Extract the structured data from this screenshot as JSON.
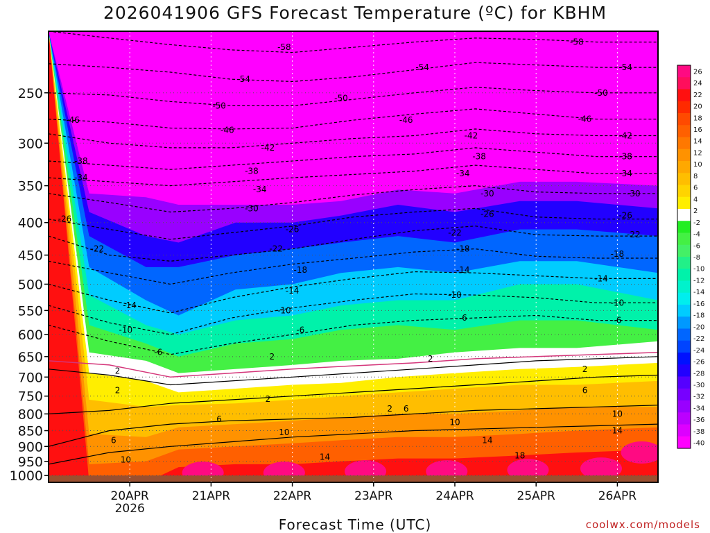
{
  "title": "2026041906 GFS Forecast Temperature (ºC) for KBHM",
  "credit": "coolwx.com/models",
  "chart_data": {
    "type": "heatmap",
    "title": "2026041906 GFS Forecast Temperature (ºC) for KBHM",
    "xlabel": "Forecast Time (UTC)",
    "ylabel": "",
    "x_ticks": [
      {
        "label": "20APR",
        "sub": "2026",
        "day": 1
      },
      {
        "label": "21APR",
        "sub": "",
        "day": 2
      },
      {
        "label": "22APR",
        "sub": "",
        "day": 3
      },
      {
        "label": "23APR",
        "sub": "",
        "day": 4
      },
      {
        "label": "24APR",
        "sub": "",
        "day": 5
      },
      {
        "label": "25APR",
        "sub": "",
        "day": 6
      },
      {
        "label": "26APR",
        "sub": "",
        "day": 7
      }
    ],
    "xlim_days": [
      0,
      7.5
    ],
    "y_ticks": [
      250,
      300,
      350,
      400,
      450,
      500,
      550,
      600,
      650,
      700,
      750,
      800,
      850,
      900,
      950,
      1000
    ],
    "ylim_hPa": [
      200,
      1025
    ],
    "y_scale": "log",
    "grid": true,
    "colorbar": {
      "labels": [
        "26",
        "24",
        "22",
        "20",
        "18",
        "16",
        "14",
        "12",
        "10",
        "8",
        "6",
        "4",
        "2",
        "-2",
        "-4",
        "-6",
        "-8",
        "-10",
        "-12",
        "-14",
        "-16",
        "-18",
        "-20",
        "-22",
        "-24",
        "-26",
        "-28",
        "-30",
        "-32",
        "-34",
        "-36",
        "-38",
        "-40"
      ],
      "colors": [
        "#ff0a82",
        "#ff0e5c",
        "#ff1010",
        "#ff2a00",
        "#ff4a00",
        "#ff6000",
        "#ff7800",
        "#ff9200",
        "#ffa800",
        "#ffbe00",
        "#ffd400",
        "#ffee00",
        "#ffffff",
        "#22ee22",
        "#44f044",
        "#44f066",
        "#22f088",
        "#00f2aa",
        "#00f2cc",
        "#00eeee",
        "#00ccff",
        "#0099ff",
        "#0066ff",
        "#0044ff",
        "#0011ff",
        "#2200ff",
        "#5500ff",
        "#7700ff",
        "#9900ff",
        "#bb00ff",
        "#dd00ff",
        "#ff00ff"
      ]
    },
    "layers": [
      {
        "color": "#ff00ff",
        "profile_hPa": [
          200,
          335,
          335,
          345,
          345,
          360,
          360,
          345,
          345,
          330,
          330,
          335
        ]
      },
      {
        "color": "#9900ff",
        "profile_hPa": [
          200,
          360,
          365,
          375,
          375,
          375,
          370,
          355,
          360,
          345,
          345,
          350
        ]
      },
      {
        "color": "#2200ff",
        "profile_hPa": [
          200,
          385,
          420,
          430,
          400,
          400,
          390,
          375,
          385,
          370,
          370,
          380
        ]
      },
      {
        "color": "#0066ff",
        "profile_hPa": [
          200,
          420,
          470,
          470,
          450,
          440,
          430,
          420,
          430,
          410,
          410,
          420
        ]
      },
      {
        "color": "#00ccff",
        "profile_hPa": [
          200,
          470,
          530,
          560,
          510,
          500,
          480,
          470,
          480,
          460,
          460,
          480
        ]
      },
      {
        "color": "#00f2aa",
        "profile_hPa": [
          200,
          520,
          580,
          600,
          570,
          560,
          540,
          530,
          530,
          500,
          500,
          530
        ]
      },
      {
        "color": "#44f044",
        "profile_hPa": [
          200,
          580,
          620,
          650,
          620,
          610,
          590,
          580,
          590,
          570,
          570,
          590
        ]
      },
      {
        "color": "#ffffff",
        "profile_hPa": [
          200,
          640,
          660,
          690,
          680,
          670,
          660,
          655,
          640,
          630,
          630,
          615
        ]
      },
      {
        "color": "#ffee00",
        "profile_hPa": [
          200,
          690,
          710,
          740,
          730,
          720,
          715,
          700,
          690,
          680,
          675,
          665
        ]
      },
      {
        "color": "#ffbe00",
        "profile_hPa": [
          200,
          760,
          780,
          775,
          770,
          760,
          750,
          740,
          730,
          720,
          720,
          710
        ]
      },
      {
        "color": "#ff9200",
        "profile_hPa": [
          200,
          860,
          870,
          840,
          830,
          820,
          810,
          800,
          800,
          790,
          780,
          780
        ]
      },
      {
        "color": "#ff6000",
        "profile_hPa": [
          200,
          960,
          950,
          910,
          900,
          890,
          880,
          870,
          870,
          860,
          850,
          840
        ]
      },
      {
        "color": "#ff1010",
        "profile_hPa": [
          200,
          1025,
          1025,
          970,
          960,
          960,
          950,
          940,
          940,
          930,
          920,
          910
        ]
      }
    ],
    "layer_x_days": [
      0,
      0.5,
      1.2,
      1.6,
      2.3,
      3,
      3.6,
      4.3,
      5,
      5.8,
      6.5,
      7.5
    ],
    "hot_spots": [
      {
        "day": 1.9,
        "hPa": 990,
        "color": "#ff0a82"
      },
      {
        "day": 2.9,
        "hPa": 990,
        "color": "#ff0a82"
      },
      {
        "day": 3.9,
        "hPa": 985,
        "color": "#ff0a82"
      },
      {
        "day": 4.9,
        "hPa": 985,
        "color": "#ff0a82"
      },
      {
        "day": 5.9,
        "hPa": 980,
        "color": "#ff0a82"
      },
      {
        "day": 6.8,
        "hPa": 975,
        "color": "#ff0a82"
      },
      {
        "day": 7.3,
        "hPa": 920,
        "color": "#ff0a82"
      }
    ],
    "ground_hPa": 1000,
    "ground_color": "#9a5030",
    "contours": [
      {
        "value": -58,
        "dashed": true,
        "profile_hPa": [
          200,
          205,
          210,
          214,
          216,
          212,
          208,
          205,
          206,
          208,
          208
        ]
      },
      {
        "value": -54,
        "dashed": true,
        "profile_hPa": [
          225,
          228,
          232,
          238,
          240,
          236,
          230,
          224,
          226,
          228,
          228
        ]
      },
      {
        "value": -50,
        "dashed": true,
        "profile_hPa": [
          250,
          252,
          258,
          262,
          262,
          256,
          250,
          245,
          248,
          250,
          250
        ]
      },
      {
        "value": -46,
        "dashed": true,
        "profile_hPa": [
          275,
          278,
          284,
          285,
          284,
          276,
          270,
          265,
          270,
          275,
          275
        ]
      },
      {
        "value": -42,
        "dashed": true,
        "profile_hPa": [
          290,
          300,
          305,
          305,
          300,
          295,
          292,
          285,
          290,
          292,
          292
        ]
      },
      {
        "value": -38,
        "dashed": true,
        "profile_hPa": [
          320,
          325,
          330,
          325,
          320,
          315,
          312,
          305,
          310,
          315,
          315
        ]
      },
      {
        "value": -34,
        "dashed": true,
        "profile_hPa": [
          340,
          345,
          350,
          345,
          340,
          336,
          332,
          325,
          330,
          335,
          335
        ]
      },
      {
        "value": -30,
        "dashed": true,
        "profile_hPa": [
          360,
          372,
          385,
          380,
          372,
          362,
          355,
          350,
          358,
          360,
          360
        ]
      },
      {
        "value": -26,
        "dashed": true,
        "profile_hPa": [
          395,
          410,
          425,
          415,
          405,
          392,
          385,
          380,
          392,
          395,
          395
        ]
      },
      {
        "value": -22,
        "dashed": true,
        "profile_hPa": [
          420,
          450,
          460,
          450,
          440,
          425,
          412,
          405,
          418,
          420,
          420
        ]
      },
      {
        "value": -18,
        "dashed": true,
        "profile_hPa": [
          460,
          480,
          500,
          480,
          465,
          455,
          445,
          440,
          452,
          455,
          455
        ]
      },
      {
        "value": -14,
        "dashed": true,
        "profile_hPa": [
          500,
          530,
          555,
          525,
          505,
          490,
          478,
          480,
          485,
          490,
          490
        ]
      },
      {
        "value": -10,
        "dashed": true,
        "profile_hPa": [
          540,
          575,
          600,
          565,
          545,
          530,
          518,
          520,
          525,
          535,
          535
        ]
      },
      {
        "value": -6,
        "dashed": true,
        "profile_hPa": [
          580,
          615,
          645,
          620,
          600,
          580,
          570,
          565,
          560,
          570,
          570
        ]
      },
      {
        "value": 2,
        "dashed": false,
        "profile_hPa": [
          680,
          695,
          720,
          710,
          700,
          690,
          680,
          670,
          660,
          655,
          650
        ]
      },
      {
        "value": 6,
        "dashed": false,
        "profile_hPa": [
          800,
          790,
          770,
          760,
          750,
          740,
          730,
          720,
          710,
          700,
          695
        ]
      },
      {
        "value": 10,
        "dashed": false,
        "profile_hPa": [
          900,
          850,
          830,
          820,
          815,
          810,
          800,
          790,
          785,
          780,
          775
        ]
      },
      {
        "value": 14,
        "dashed": false,
        "profile_hPa": [
          960,
          920,
          900,
          885,
          870,
          860,
          850,
          845,
          840,
          835,
          830
        ]
      }
    ],
    "contour_x_days": [
      0,
      0.75,
      1.5,
      2.25,
      3,
      3.75,
      4.5,
      5.25,
      6,
      6.75,
      7.5
    ],
    "freezing_line": {
      "value": 0,
      "color": "#d4367a",
      "profile_hPa": [
        660,
        670,
        700,
        690,
        680,
        672,
        665,
        655,
        650,
        645,
        640
      ]
    },
    "contour_labels": [
      {
        "text": "-58",
        "day": 2.9,
        "hPa": 212,
        "color": "#000"
      },
      {
        "text": "-58",
        "day": 6.5,
        "hPa": 208,
        "color": "#000"
      },
      {
        "text": "-54",
        "day": 2.4,
        "hPa": 238,
        "color": "#000"
      },
      {
        "text": "-54",
        "day": 4.6,
        "hPa": 228,
        "color": "#000"
      },
      {
        "text": "-54",
        "day": 7.1,
        "hPa": 228,
        "color": "#000"
      },
      {
        "text": "-50",
        "day": 2.1,
        "hPa": 262,
        "color": "#000"
      },
      {
        "text": "-50",
        "day": 3.6,
        "hPa": 255,
        "color": "#000"
      },
      {
        "text": "-50",
        "day": 6.8,
        "hPa": 250,
        "color": "#000"
      },
      {
        "text": "-46",
        "day": 0.3,
        "hPa": 276,
        "color": "#000"
      },
      {
        "text": "-46",
        "day": 2.2,
        "hPa": 286,
        "color": "#000"
      },
      {
        "text": "-46",
        "day": 4.4,
        "hPa": 276,
        "color": "#000"
      },
      {
        "text": "-46",
        "day": 6.6,
        "hPa": 275,
        "color": "#000"
      },
      {
        "text": "-42",
        "day": 2.7,
        "hPa": 305,
        "color": "#000"
      },
      {
        "text": "-42",
        "day": 5.2,
        "hPa": 292,
        "color": "#000"
      },
      {
        "text": "-42",
        "day": 7.1,
        "hPa": 292,
        "color": "#000"
      },
      {
        "text": "-38",
        "day": 0.4,
        "hPa": 320,
        "color": "#000"
      },
      {
        "text": "-38",
        "day": 2.5,
        "hPa": 332,
        "color": "#000"
      },
      {
        "text": "-38",
        "day": 5.3,
        "hPa": 315,
        "color": "#000"
      },
      {
        "text": "-38",
        "day": 7.1,
        "hPa": 315,
        "color": "#000"
      },
      {
        "text": "-34",
        "day": 0.4,
        "hPa": 340,
        "color": "#000"
      },
      {
        "text": "-34",
        "day": 2.6,
        "hPa": 355,
        "color": "#000"
      },
      {
        "text": "-34",
        "day": 5.1,
        "hPa": 335,
        "color": "#000"
      },
      {
        "text": "-34",
        "day": 7.1,
        "hPa": 335,
        "color": "#000"
      },
      {
        "text": "-30",
        "day": 2.5,
        "hPa": 380,
        "color": "#000"
      },
      {
        "text": "-30",
        "day": 5.4,
        "hPa": 360,
        "color": "#000"
      },
      {
        "text": "-30",
        "day": 7.2,
        "hPa": 360,
        "color": "#000"
      },
      {
        "text": "-26",
        "day": 0.2,
        "hPa": 395,
        "color": "#000"
      },
      {
        "text": "-26",
        "day": 3.0,
        "hPa": 410,
        "color": "#000"
      },
      {
        "text": "-26",
        "day": 5.4,
        "hPa": 388,
        "color": "#000"
      },
      {
        "text": "-26",
        "day": 7.1,
        "hPa": 390,
        "color": "#000"
      },
      {
        "text": "-22",
        "day": 0.6,
        "hPa": 440,
        "color": "#000"
      },
      {
        "text": "-22",
        "day": 2.8,
        "hPa": 440,
        "color": "#000"
      },
      {
        "text": "-22",
        "day": 5.0,
        "hPa": 415,
        "color": "#000"
      },
      {
        "text": "-22",
        "day": 7.2,
        "hPa": 418,
        "color": "#000"
      },
      {
        "text": "-18",
        "day": 3.1,
        "hPa": 475,
        "color": "#000"
      },
      {
        "text": "-18",
        "day": 5.1,
        "hPa": 440,
        "color": "#000"
      },
      {
        "text": "-18",
        "day": 7.0,
        "hPa": 448,
        "color": "#000"
      },
      {
        "text": "-14",
        "day": 1.0,
        "hPa": 540,
        "color": "#000"
      },
      {
        "text": "-14",
        "day": 3.0,
        "hPa": 512,
        "color": "#000"
      },
      {
        "text": "-14",
        "day": 5.1,
        "hPa": 475,
        "color": "#000"
      },
      {
        "text": "-14",
        "day": 6.8,
        "hPa": 490,
        "color": "#000"
      },
      {
        "text": "-10",
        "day": 0.95,
        "hPa": 590,
        "color": "#000"
      },
      {
        "text": "-10",
        "day": 2.9,
        "hPa": 550,
        "color": "#000"
      },
      {
        "text": "-10",
        "day": 5.0,
        "hPa": 520,
        "color": "#000"
      },
      {
        "text": "-10",
        "day": 7.0,
        "hPa": 535,
        "color": "#000"
      },
      {
        "text": "-6",
        "day": 1.35,
        "hPa": 640,
        "color": "#000"
      },
      {
        "text": "-6",
        "day": 3.1,
        "hPa": 590,
        "color": "#000"
      },
      {
        "text": "-6",
        "day": 5.1,
        "hPa": 565,
        "color": "#000"
      },
      {
        "text": "-6",
        "day": 7.0,
        "hPa": 570,
        "color": "#000"
      },
      {
        "text": "2",
        "day": 0.85,
        "hPa": 685,
        "color": "#000"
      },
      {
        "text": "2",
        "day": 2.75,
        "hPa": 650,
        "color": "#000"
      },
      {
        "text": "2",
        "day": 4.7,
        "hPa": 655,
        "color": "#000"
      },
      {
        "text": "2",
        "day": 0.85,
        "hPa": 735,
        "color": "#000"
      },
      {
        "text": "2",
        "day": 2.7,
        "hPa": 758,
        "color": "#000"
      },
      {
        "text": "2",
        "day": 4.2,
        "hPa": 785,
        "color": "#000"
      },
      {
        "text": "2",
        "day": 6.6,
        "hPa": 680,
        "color": "#000"
      },
      {
        "text": "6",
        "day": 2.1,
        "hPa": 815,
        "color": "#000"
      },
      {
        "text": "6",
        "day": 4.4,
        "hPa": 785,
        "color": "#000"
      },
      {
        "text": "6",
        "day": 6.6,
        "hPa": 735,
        "color": "#000"
      },
      {
        "text": "6",
        "day": 0.8,
        "hPa": 880,
        "color": "#000"
      },
      {
        "text": "10",
        "day": 0.95,
        "hPa": 945,
        "color": "#000"
      },
      {
        "text": "10",
        "day": 2.9,
        "hPa": 855,
        "color": "#000"
      },
      {
        "text": "10",
        "day": 5.0,
        "hPa": 825,
        "color": "#000"
      },
      {
        "text": "10",
        "day": 7.0,
        "hPa": 800,
        "color": "#000"
      },
      {
        "text": "14",
        "day": 3.4,
        "hPa": 935,
        "color": "#000"
      },
      {
        "text": "14",
        "day": 5.4,
        "hPa": 880,
        "color": "#000"
      },
      {
        "text": "14",
        "day": 7.0,
        "hPa": 850,
        "color": "#000"
      },
      {
        "text": "18",
        "day": 5.8,
        "hPa": 930,
        "color": "#000"
      }
    ]
  }
}
